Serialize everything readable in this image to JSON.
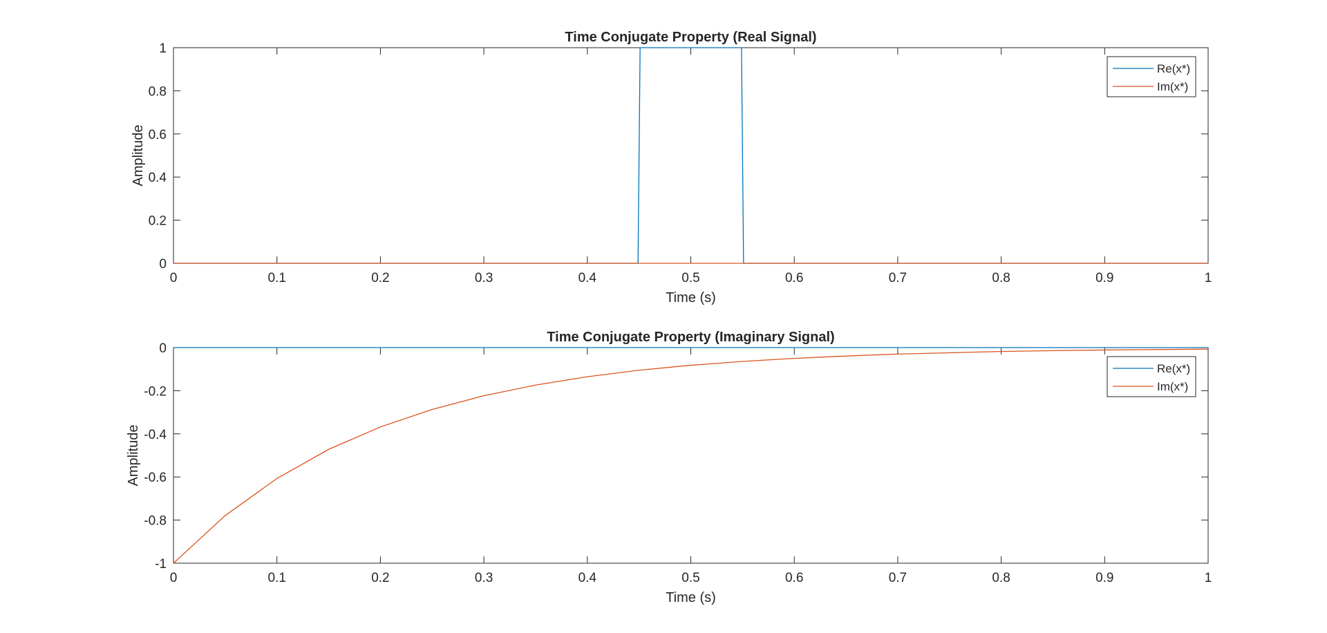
{
  "chart_data": [
    {
      "type": "line",
      "title": "Time Conjugate Property (Real Signal)",
      "xlabel": "Time (s)",
      "ylabel": "Amplitude",
      "xlim": [
        0,
        1
      ],
      "ylim": [
        0,
        1
      ],
      "xticks": [
        "0",
        "0.1",
        "0.2",
        "0.3",
        "0.4",
        "0.5",
        "0.6",
        "0.7",
        "0.8",
        "0.9",
        "1"
      ],
      "yticks": [
        "0",
        "0.2",
        "0.4",
        "0.6",
        "0.8",
        "1"
      ],
      "grid": false,
      "legend_position": "top-right",
      "series": [
        {
          "name": "Re(x*)",
          "color": "#0072BD",
          "x": [
            0,
            0.449,
            0.451,
            0.549,
            0.551,
            1
          ],
          "y": [
            0,
            0,
            1,
            1,
            0,
            0
          ]
        },
        {
          "name": "Im(x*)",
          "color": "#D95319",
          "x": [
            0,
            1
          ],
          "y": [
            0,
            0
          ]
        }
      ]
    },
    {
      "type": "line",
      "title": "Time Conjugate Property (Imaginary Signal)",
      "xlabel": "Time (s)",
      "ylabel": "Amplitude",
      "xlim": [
        0,
        1
      ],
      "ylim": [
        -1,
        0
      ],
      "xticks": [
        "0",
        "0.1",
        "0.2",
        "0.3",
        "0.4",
        "0.5",
        "0.6",
        "0.7",
        "0.8",
        "0.9",
        "1"
      ],
      "yticks": [
        "-1",
        "-0.8",
        "-0.6",
        "-0.4",
        "-0.2",
        "0"
      ],
      "grid": false,
      "legend_position": "top-right",
      "series": [
        {
          "name": "Re(x*)",
          "color": "#0072BD",
          "x": [
            0,
            1
          ],
          "y": [
            0,
            0
          ]
        },
        {
          "name": "Im(x*)",
          "color": "#D95319",
          "x": [
            0,
            0.05,
            0.1,
            0.15,
            0.2,
            0.25,
            0.3,
            0.35,
            0.4,
            0.45,
            0.5,
            0.55,
            0.6,
            0.65,
            0.7,
            0.75,
            0.8,
            0.85,
            0.9,
            0.95,
            1
          ],
          "y": [
            -1,
            -0.779,
            -0.607,
            -0.472,
            -0.368,
            -0.287,
            -0.223,
            -0.174,
            -0.135,
            -0.105,
            -0.082,
            -0.064,
            -0.05,
            -0.039,
            -0.03,
            -0.024,
            -0.018,
            -0.014,
            -0.011,
            -0.009,
            -0.007
          ]
        }
      ]
    }
  ]
}
